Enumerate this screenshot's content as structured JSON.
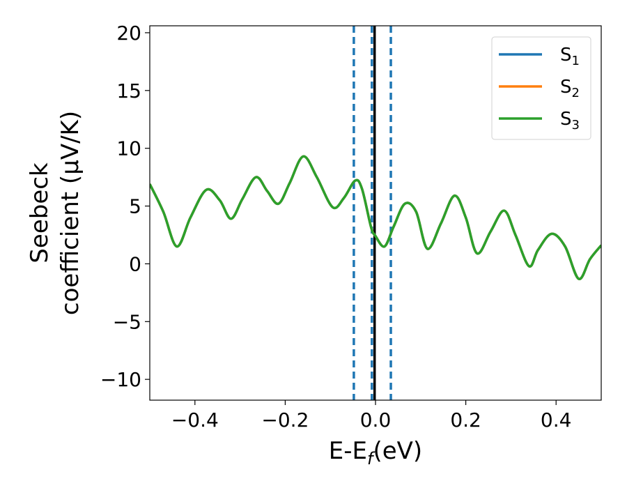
{
  "chart_data": {
    "type": "line",
    "xlabel": "E-E",
    "xlabel_subscript": "f",
    "xlabel_unit": "(eV)",
    "ylabel_line1": "Seebeck",
    "ylabel_line2": "coefficient  (μV/K)",
    "xlim": [
      -0.5,
      0.5
    ],
    "ylim": [
      -11.8,
      20.6
    ],
    "xticks": [
      -0.4,
      -0.2,
      0.0,
      0.2,
      0.4
    ],
    "xtick_labels": [
      "−0.4",
      "−0.2",
      "0.0",
      "0.2",
      "0.4"
    ],
    "yticks": [
      -10,
      -5,
      0,
      5,
      10,
      15,
      20
    ],
    "ytick_labels": [
      "−10",
      "−5",
      "0",
      "5",
      "10",
      "15",
      "20"
    ],
    "grid": false,
    "legend_position": "top-right",
    "series": [
      {
        "name": "S",
        "subscript": "1",
        "color": "#1f77b4",
        "x": [
          -0.5,
          -0.47,
          -0.44,
          -0.41,
          -0.375,
          -0.345,
          -0.32,
          -0.295,
          -0.265,
          -0.24,
          -0.215,
          -0.19,
          -0.16,
          -0.13,
          -0.095,
          -0.07,
          -0.045,
          -0.03,
          -0.01,
          0.0,
          0.02,
          0.04,
          0.065,
          0.09,
          0.115,
          0.145,
          0.175,
          0.2,
          0.225,
          0.255,
          0.285,
          0.31,
          0.34,
          0.36,
          0.39,
          0.42,
          0.45,
          0.475,
          0.5
        ],
        "y": [
          6.9,
          4.5,
          1.5,
          4.0,
          6.4,
          5.5,
          3.9,
          5.6,
          7.5,
          6.3,
          5.2,
          7.0,
          9.3,
          7.5,
          4.9,
          5.7,
          7.2,
          6.5,
          3.2,
          2.4,
          1.5,
          3.2,
          5.2,
          4.5,
          1.3,
          3.5,
          5.9,
          4.0,
          0.9,
          2.8,
          4.6,
          2.5,
          -0.2,
          1.2,
          2.6,
          1.5,
          -1.3,
          0.4,
          1.6
        ]
      },
      {
        "name": "S",
        "subscript": "2",
        "color": "#ff7f0e",
        "x": [
          -0.5,
          -0.47,
          -0.44,
          -0.41,
          -0.375,
          -0.345,
          -0.32,
          -0.295,
          -0.265,
          -0.24,
          -0.215,
          -0.19,
          -0.16,
          -0.13,
          -0.095,
          -0.07,
          -0.045,
          -0.03,
          -0.01,
          0.0,
          0.02,
          0.04,
          0.065,
          0.09,
          0.115,
          0.145,
          0.175,
          0.2,
          0.225,
          0.255,
          0.285,
          0.31,
          0.34,
          0.36,
          0.39,
          0.42,
          0.45,
          0.475,
          0.5
        ],
        "y": [
          6.9,
          4.5,
          1.5,
          4.0,
          6.4,
          5.5,
          3.9,
          5.6,
          7.5,
          6.3,
          5.2,
          7.0,
          9.3,
          7.5,
          4.9,
          5.7,
          7.2,
          6.5,
          3.2,
          2.4,
          1.5,
          3.2,
          5.2,
          4.5,
          1.3,
          3.5,
          5.9,
          4.0,
          0.9,
          2.8,
          4.6,
          2.5,
          -0.2,
          1.2,
          2.6,
          1.5,
          -1.3,
          0.4,
          1.6
        ]
      },
      {
        "name": "S",
        "subscript": "3",
        "color": "#2ca02c",
        "x": [
          -0.5,
          -0.47,
          -0.44,
          -0.41,
          -0.375,
          -0.345,
          -0.32,
          -0.295,
          -0.265,
          -0.24,
          -0.215,
          -0.19,
          -0.16,
          -0.13,
          -0.095,
          -0.07,
          -0.045,
          -0.03,
          -0.01,
          0.0,
          0.02,
          0.04,
          0.065,
          0.09,
          0.115,
          0.145,
          0.175,
          0.2,
          0.225,
          0.255,
          0.285,
          0.31,
          0.34,
          0.36,
          0.39,
          0.42,
          0.45,
          0.475,
          0.5
        ],
        "y": [
          6.9,
          4.5,
          1.5,
          4.0,
          6.4,
          5.5,
          3.9,
          5.6,
          7.5,
          6.3,
          5.2,
          7.0,
          9.3,
          7.5,
          4.9,
          5.7,
          7.2,
          6.5,
          3.2,
          2.4,
          1.5,
          3.2,
          5.2,
          4.5,
          1.3,
          3.5,
          5.9,
          4.0,
          0.9,
          2.8,
          4.6,
          2.5,
          -0.2,
          1.2,
          2.6,
          1.5,
          -1.3,
          0.4,
          1.6
        ]
      }
    ],
    "vlines": [
      {
        "x": -0.048,
        "style": "dashed",
        "color": "#1f77b4"
      },
      {
        "x": -0.008,
        "style": "dashed",
        "color": "#1f77b4"
      },
      {
        "x": 0.034,
        "style": "dashed",
        "color": "#1f77b4"
      },
      {
        "x": -0.002,
        "style": "solid",
        "color": "#000000"
      }
    ]
  }
}
